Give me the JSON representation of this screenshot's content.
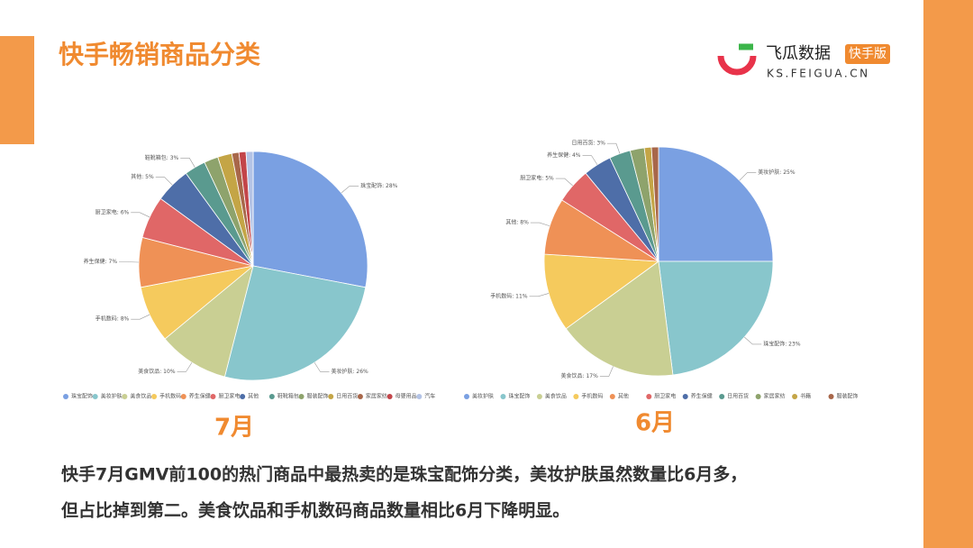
{
  "slide": {
    "title": "快手畅销商品分类",
    "brand": "飞瓜数据",
    "badge": "快手版",
    "url": "KS.FEIGUA.CN",
    "captions": [
      "快手7月GMV前100的热门商品中最热卖的是珠宝配饰分类，美妆护肤虽然数量比6月多，",
      "但占比掉到第二。美食饮品和手机数码商品数量相比6月下降明显。"
    ]
  },
  "chart_data": [
    {
      "type": "pie",
      "title": "7月",
      "categories": [
        "珠宝配饰",
        "美妆护肤",
        "美食饮品",
        "手机数码",
        "养生保健",
        "厨卫家电",
        "其他",
        "鞋靴箱包",
        "服装配饰",
        "日用百货",
        "家居家纺",
        "母婴用品",
        "汽车"
      ],
      "values": [
        28,
        26,
        10,
        8,
        7,
        6,
        5,
        3,
        2,
        2,
        1,
        1,
        1
      ],
      "value_labels": [
        "珠宝配饰: 28%",
        "美妆护肤: 26%",
        "美食饮品: 10%",
        "手机数码: 8%",
        "养生保健: 7%",
        "厨卫家电: 6%",
        "其他: 5%",
        "鞋靴箱包: 3%",
        null,
        null,
        null,
        null,
        null
      ],
      "colors": [
        "#7aa0e2",
        "#88c6cc",
        "#c9cf93",
        "#f5ca5d",
        "#ef9156",
        "#e06767",
        "#4e6ea8",
        "#5a9a8f",
        "#8ea36c",
        "#c4a546",
        "#a8674a",
        "#c3454a",
        "#b3c3e6"
      ]
    },
    {
      "type": "pie",
      "title": "6月",
      "categories": [
        "美妆护肤",
        "珠宝配饰",
        "美食饮品",
        "手机数码",
        "其他",
        "厨卫家电",
        "养生保健",
        "日用百货",
        "家居家纺",
        "书籍",
        "服装配饰"
      ],
      "values": [
        25,
        23,
        17,
        11,
        8,
        5,
        4,
        3,
        2,
        1,
        1
      ],
      "value_labels": [
        "美妆护肤: 25%",
        "珠宝配饰: 23%",
        "美食饮品: 17%",
        "手机数码: 11%",
        "其他: 8%",
        "厨卫家电: 5%",
        "养生保健: 4%",
        "日用百货: 3%",
        null,
        null,
        null
      ],
      "colors": [
        "#7aa0e2",
        "#88c6cc",
        "#c9cf93",
        "#f5ca5d",
        "#ef9156",
        "#e06767",
        "#4e6ea8",
        "#5a9a8f",
        "#8ea36c",
        "#c4a546",
        "#a8674a"
      ]
    }
  ]
}
